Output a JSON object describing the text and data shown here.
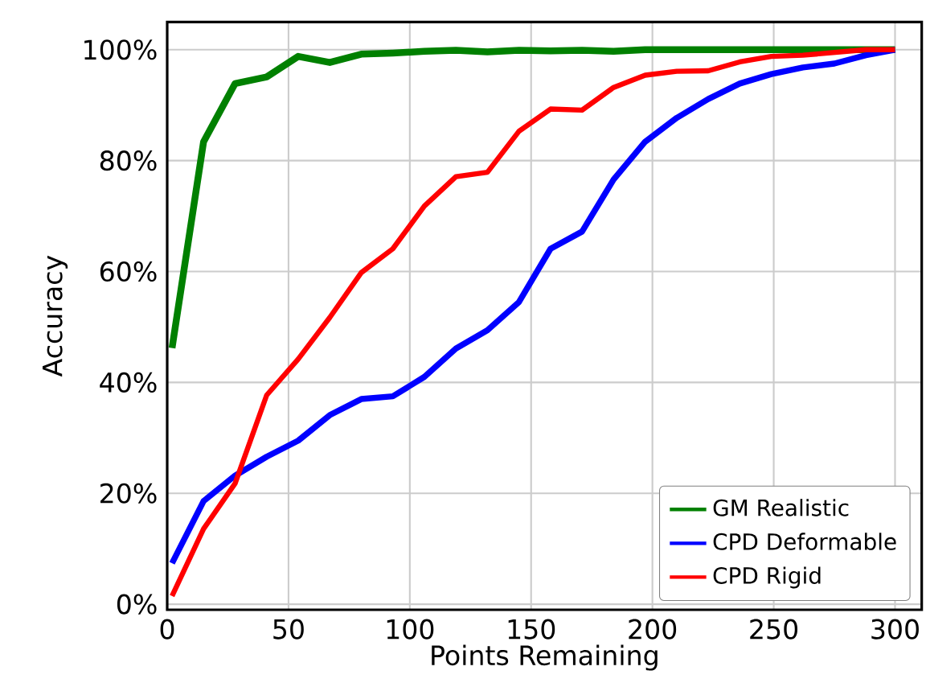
{
  "chart_data": {
    "type": "line",
    "xlabel": "Points Remaining",
    "ylabel": "Accuracy",
    "x": [
      2,
      15,
      28,
      41,
      54,
      67,
      80,
      93,
      106,
      119,
      132,
      145,
      158,
      171,
      184,
      197,
      210,
      223,
      236,
      249,
      262,
      275,
      288,
      300
    ],
    "series": [
      {
        "name": "GM Realistic",
        "color": "#008000",
        "values": [
          46.2,
          83.4,
          93.9,
          95.1,
          98.8,
          97.7,
          99.2,
          99.4,
          99.7,
          99.9,
          99.6,
          99.9,
          99.8,
          99.9,
          99.7,
          100,
          100,
          100,
          100,
          100,
          100,
          100,
          100,
          100
        ]
      },
      {
        "name": "CPD Deformable",
        "color": "#0000ff",
        "values": [
          7.4,
          18.6,
          23.2,
          26.6,
          29.5,
          34.1,
          37.0,
          37.5,
          41.0,
          46.1,
          49.4,
          54.5,
          64.1,
          67.2,
          76.6,
          83.4,
          87.7,
          91.1,
          93.9,
          95.6,
          96.8,
          97.5,
          99.0,
          100
        ]
      },
      {
        "name": "CPD Rigid",
        "color": "#ff0000",
        "values": [
          1.5,
          13.6,
          21.8,
          37.7,
          44.2,
          51.7,
          59.8,
          64.1,
          71.8,
          77.1,
          77.9,
          85.3,
          89.3,
          89.1,
          93.2,
          95.4,
          96.1,
          96.2,
          97.8,
          98.8,
          99.0,
          99.5,
          100,
          100
        ]
      }
    ],
    "xlim": [
      0,
      311
    ],
    "ylim": [
      -1,
      105
    ],
    "xticks": [
      0,
      50,
      100,
      150,
      200,
      250,
      300
    ],
    "yticks": [
      {
        "value": 0,
        "label": "0%"
      },
      {
        "value": 20,
        "label": "20%"
      },
      {
        "value": 40,
        "label": "40%"
      },
      {
        "value": 60,
        "label": "60%"
      },
      {
        "value": 80,
        "label": "80%"
      },
      {
        "value": 100,
        "label": "100%"
      }
    ],
    "grid": true,
    "legend": "bottom right",
    "line_style": "solid"
  }
}
